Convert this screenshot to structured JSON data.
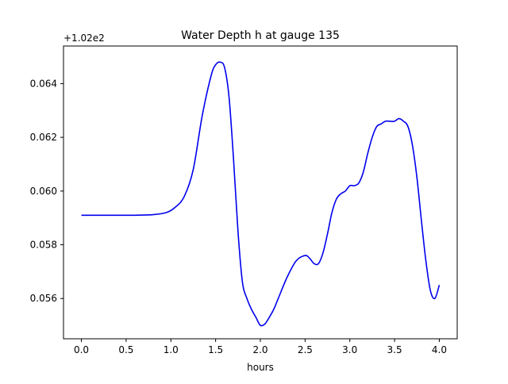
{
  "chart_data": {
    "type": "line",
    "title": "Water Depth h at gauge 135",
    "xlabel": "hours",
    "ylabel": "",
    "offset_label": "+1.02e2",
    "xlim": [
      -0.2,
      4.2
    ],
    "ylim": [
      0.0545,
      0.0654
    ],
    "xticks": [
      {
        "value": 0.0,
        "label": "0.0"
      },
      {
        "value": 0.5,
        "label": "0.5"
      },
      {
        "value": 1.0,
        "label": "1.0"
      },
      {
        "value": 1.5,
        "label": "1.5"
      },
      {
        "value": 2.0,
        "label": "2.0"
      },
      {
        "value": 2.5,
        "label": "2.5"
      },
      {
        "value": 3.0,
        "label": "3.0"
      },
      {
        "value": 3.5,
        "label": "3.5"
      },
      {
        "value": 4.0,
        "label": "4.0"
      }
    ],
    "yticks": [
      {
        "value": 0.056,
        "label": "0.056"
      },
      {
        "value": 0.058,
        "label": "0.058"
      },
      {
        "value": 0.06,
        "label": "0.060"
      },
      {
        "value": 0.062,
        "label": "0.062"
      },
      {
        "value": 0.064,
        "label": "0.064"
      }
    ],
    "grid": false,
    "line_color": "#0000ee",
    "series": [
      {
        "name": "",
        "x": [
          0.0,
          0.3,
          0.6,
          0.8,
          0.95,
          1.05,
          1.15,
          1.25,
          1.35,
          1.45,
          1.5,
          1.55,
          1.6,
          1.65,
          1.7,
          1.75,
          1.8,
          1.85,
          1.9,
          1.95,
          2.0,
          2.05,
          2.1,
          2.15,
          2.2,
          2.3,
          2.4,
          2.5,
          2.55,
          2.6,
          2.65,
          2.7,
          2.75,
          2.8,
          2.85,
          2.9,
          2.95,
          3.0,
          3.05,
          3.1,
          3.15,
          3.2,
          3.25,
          3.3,
          3.35,
          3.4,
          3.45,
          3.5,
          3.55,
          3.6,
          3.65,
          3.7,
          3.75,
          3.8,
          3.85,
          3.9,
          3.95,
          4.0
        ],
        "values": [
          0.0591,
          0.0591,
          0.0591,
          0.05912,
          0.0592,
          0.0594,
          0.0598,
          0.0608,
          0.0628,
          0.0643,
          0.0647,
          0.0648,
          0.0646,
          0.0635,
          0.0612,
          0.0585,
          0.0566,
          0.056,
          0.0556,
          0.0553,
          0.055,
          0.05505,
          0.0553,
          0.0556,
          0.056,
          0.0568,
          0.0574,
          0.0576,
          0.0575,
          0.0573,
          0.0573,
          0.0577,
          0.0584,
          0.0592,
          0.0597,
          0.0599,
          0.06,
          0.0602,
          0.0602,
          0.0603,
          0.0607,
          0.0614,
          0.062,
          0.0624,
          0.0625,
          0.0626,
          0.0626,
          0.0626,
          0.0627,
          0.0626,
          0.0624,
          0.0617,
          0.0605,
          0.0589,
          0.0574,
          0.0563,
          0.056,
          0.0565
        ]
      }
    ]
  }
}
